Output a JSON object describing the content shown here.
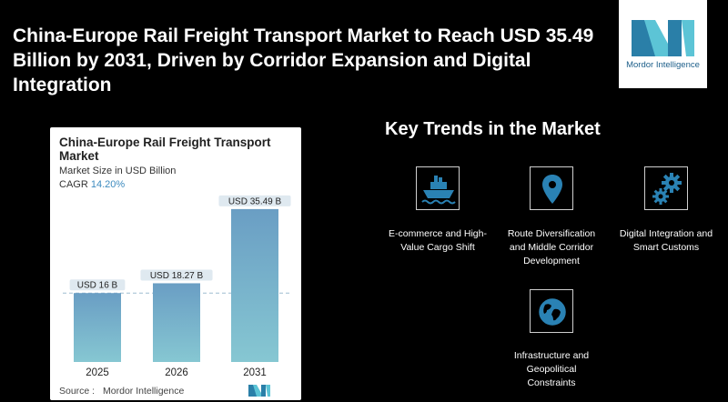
{
  "headline": "China-Europe Rail Freight Transport Market to Reach USD 35.49 Billion by 2031, Driven by Corridor Expansion and Digital Integration",
  "logo": {
    "text": "Mordor Intelligence"
  },
  "chart_data": {
    "type": "bar",
    "title": "China-Europe Rail Freight Transport Market",
    "subtitle": "Market Size in USD Billion",
    "cagr_label": "CAGR",
    "cagr_value": "14.20%",
    "categories": [
      "2025",
      "2026",
      "2031"
    ],
    "values": [
      16,
      18.27,
      35.49
    ],
    "data_labels": [
      "USD 16 B",
      "USD 18.27 B",
      "USD 35.49 B"
    ],
    "ylim": [
      0,
      38
    ],
    "grid": false,
    "reference_line": 16,
    "bar_color_top": "#6a9ec4",
    "bar_color_bottom": "#86c7d2",
    "source_label": "Source :",
    "source_value": "Mordor Intelligence"
  },
  "trends": {
    "title": "Key Trends in the Market",
    "items": [
      {
        "label": "E-commerce and High-Value Cargo Shift",
        "icon": "ship-icon"
      },
      {
        "label": "Route Diversification and Middle Corridor Development",
        "icon": "location-pin-icon"
      },
      {
        "label": "Digital Integration and Smart Customs",
        "icon": "gears-icon"
      },
      {
        "label": "Infrastructure and Geopolitical Constraints",
        "icon": "globe-icon"
      }
    ]
  }
}
